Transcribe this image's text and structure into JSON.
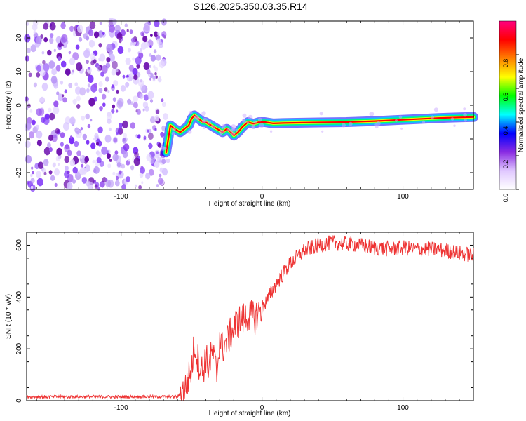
{
  "figure_title": "S126.2025.350.03.35.R14",
  "chart_data": [
    {
      "type": "heatmap",
      "title": "S126.2025.350.03.35.R14",
      "xlabel": "Height of straight line (km)",
      "ylabel": "Frequency (Hz)",
      "xlim": [
        -167,
        150
      ],
      "ylim": [
        -25,
        25
      ],
      "xticks": [
        -100,
        0,
        100
      ],
      "xtick_labels": [
        "-100",
        "0",
        "100"
      ],
      "yticks": [
        -20,
        -10,
        0,
        10,
        20
      ],
      "ytick_labels": [
        "-20",
        "-10",
        "0",
        "10",
        "20"
      ],
      "noise_region_x": [
        -167,
        -68
      ],
      "signal_start_x": -68,
      "ridge": {
        "x": [
          -68,
          -65,
          -62,
          -58,
          -55,
          -52,
          -50,
          -48,
          -45,
          -42,
          -40,
          -36,
          -32,
          -28,
          -25,
          -22,
          -20,
          -17,
          -14,
          -10,
          -6,
          -2,
          2,
          8,
          15,
          25,
          40,
          60,
          80,
          95,
          110,
          125,
          140,
          150
        ],
        "y": [
          -14,
          -6,
          -7,
          -8,
          -7,
          -6,
          -4,
          -3,
          -4,
          -5,
          -5,
          -6,
          -7,
          -8,
          -7,
          -8,
          -9,
          -8,
          -6.5,
          -5,
          -5.5,
          -5,
          -5,
          -5.4,
          -5.3,
          -5.2,
          -5.1,
          -5,
          -4.7,
          -4.4,
          -4.1,
          -3.8,
          -3.6,
          -3.5
        ],
        "color_scale": [
          "#ff0000",
          "#ffff00",
          "#00ff66",
          "#00ccff",
          "#0000ff"
        ]
      },
      "colorbar": {
        "label": "Normalized spectral amplitude",
        "ticks": [
          0.0,
          0.2,
          0.4,
          0.6,
          0.8
        ],
        "tick_labels": [
          "0.0",
          "0.2",
          "0.4",
          "0.6",
          "0.8"
        ],
        "range": [
          0,
          1
        ],
        "colors": [
          "#ffffff",
          "#e0c8ff",
          "#8a2be2",
          "#0000ff",
          "#00ffff",
          "#00ff00",
          "#ffff00",
          "#ff8000",
          "#ff0000",
          "#ff0080"
        ]
      }
    },
    {
      "type": "line",
      "xlabel": "Height of straight line (km)",
      "ylabel": "SNR (10 * v/v)",
      "xlim": [
        -167,
        150
      ],
      "ylim": [
        0,
        650
      ],
      "xticks": [
        -100,
        0,
        100
      ],
      "xtick_labels": [
        "-100",
        "0",
        "100"
      ],
      "yticks": [
        0,
        200,
        400,
        600
      ],
      "ytick_labels": [
        "0",
        "200",
        "400",
        "600"
      ],
      "color": "#ee3333",
      "series": [
        {
          "name": "SNR",
          "x": [
            -167,
            -120,
            -80,
            -60,
            -55,
            -50,
            -48,
            -45,
            -42,
            -40,
            -38,
            -35,
            -32,
            -30,
            -28,
            -25,
            -22,
            -20,
            -18,
            -15,
            -12,
            -10,
            -5,
            0,
            5,
            10,
            15,
            20,
            25,
            30,
            40,
            50,
            60,
            70,
            80,
            90,
            100,
            110,
            120,
            130,
            140,
            150
          ],
          "y": [
            15,
            15,
            15,
            15,
            40,
            120,
            220,
            150,
            110,
            170,
            130,
            190,
            100,
            250,
            200,
            230,
            260,
            280,
            300,
            310,
            320,
            330,
            320,
            360,
            400,
            450,
            490,
            530,
            555,
            580,
            600,
            610,
            605,
            600,
            590,
            585,
            590,
            585,
            585,
            580,
            570,
            560
          ],
          "noise_amplitude": 30
        }
      ]
    }
  ]
}
